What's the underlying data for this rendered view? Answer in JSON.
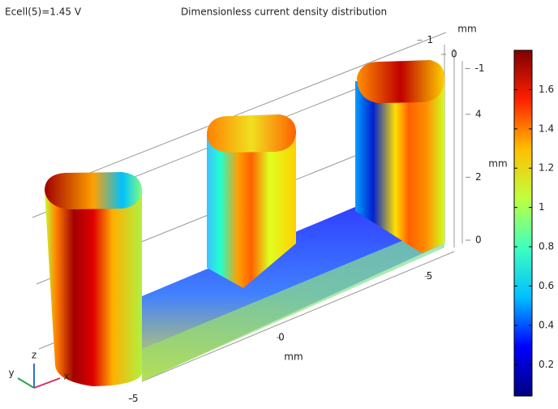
{
  "chart_data": {
    "type": "surface",
    "title": "Dimensionless current density distribution",
    "annotation": "Ecell(5)=1.45 V",
    "colorbar": {
      "clim": [
        0.04,
        1.8
      ],
      "ticks": [
        0.2,
        0.4,
        0.6,
        0.8,
        1,
        1.2,
        1.4,
        1.6
      ],
      "colormap": [
        "#00007f",
        "#0000ff",
        "#00bfff",
        "#3fffbf",
        "#bfff3f",
        "#ffbf00",
        "#ff2000",
        "#7f0000"
      ]
    },
    "x_axis": {
      "label": "mm",
      "ticks": [
        -5,
        0,
        5
      ]
    },
    "y_axis": {
      "label": "mm",
      "ticks": [
        1,
        0,
        -1
      ]
    },
    "z_axis": {
      "label": "mm",
      "ticks": [
        0,
        2,
        4
      ]
    },
    "triad": {
      "x": "x",
      "y": "y",
      "z": "z"
    }
  }
}
